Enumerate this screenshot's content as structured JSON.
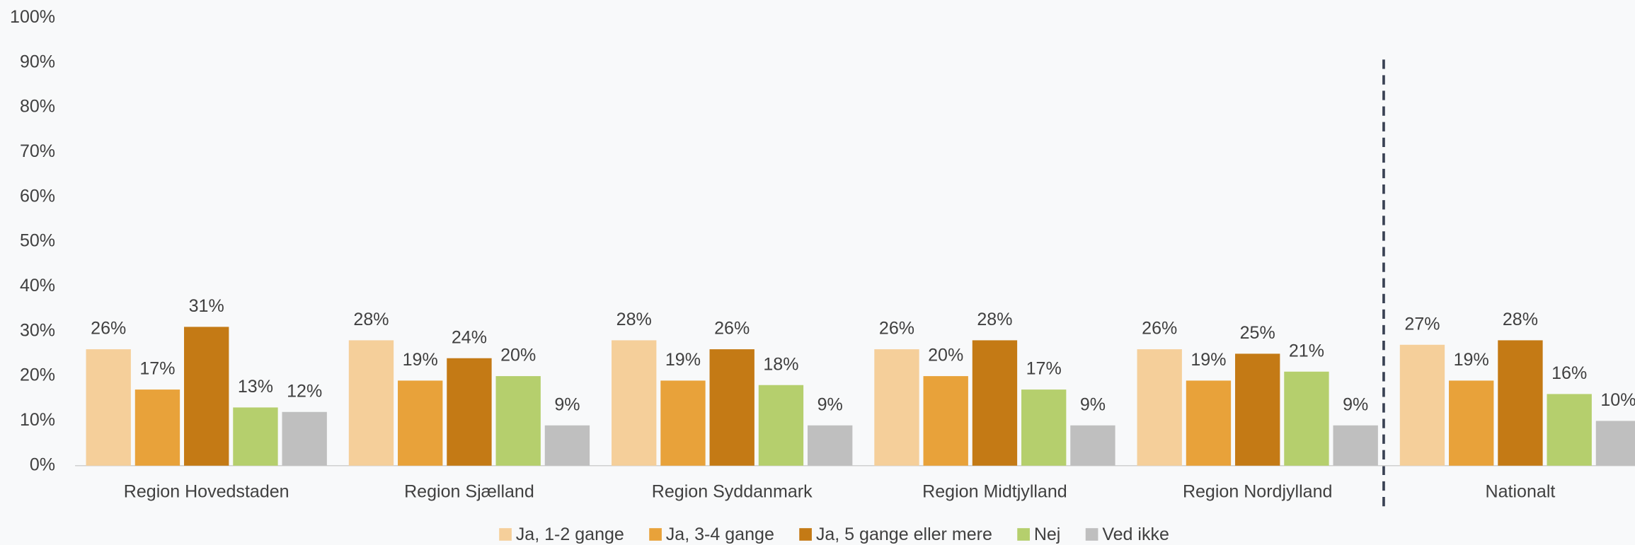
{
  "chart_data": {
    "type": "bar",
    "categories": [
      "Region Hovedstaden",
      "Region Sjælland",
      "Region Syddanmark",
      "Region Midtjylland",
      "Region Nordjylland",
      "Nationalt"
    ],
    "series": [
      {
        "name": "Ja, 1-2 gange",
        "color": "#f5cf9a",
        "values": [
          26,
          28,
          28,
          26,
          26,
          27
        ],
        "value_labels": [
          "26%",
          "28%",
          "28%",
          "26%",
          "26%",
          "27%"
        ]
      },
      {
        "name": "Ja, 3-4 gange",
        "color": "#e8a23a",
        "values": [
          17,
          19,
          19,
          20,
          19,
          19
        ],
        "value_labels": [
          "17%",
          "19%",
          "19%",
          "20%",
          "19%",
          "19%"
        ]
      },
      {
        "name": "Ja, 5 gange eller mere",
        "color": "#c47a15",
        "values": [
          31,
          24,
          26,
          28,
          25,
          28
        ],
        "value_labels": [
          "31%",
          "24%",
          "26%",
          "28%",
          "25%",
          "28%"
        ]
      },
      {
        "name": "Nej",
        "color": "#b5cf6d",
        "values": [
          13,
          20,
          18,
          17,
          21,
          16
        ],
        "value_labels": [
          "13%",
          "20%",
          "18%",
          "17%",
          "21%",
          "16%"
        ]
      },
      {
        "name": "Ved ikke",
        "color": "#bfbfbf",
        "values": [
          12,
          9,
          9,
          9,
          9,
          10
        ],
        "value_labels": [
          "12%",
          "9%",
          "9%",
          "9%",
          "9%",
          "10%"
        ]
      }
    ],
    "ylim": [
      0,
      100
    ],
    "yticks": [
      {
        "value": 0,
        "label": "0%"
      },
      {
        "value": 10,
        "label": "10%"
      },
      {
        "value": 20,
        "label": "20%"
      },
      {
        "value": 30,
        "label": "30%"
      },
      {
        "value": 40,
        "label": "40%"
      },
      {
        "value": 50,
        "label": "50%"
      },
      {
        "value": 60,
        "label": "60%"
      },
      {
        "value": 70,
        "label": "70%"
      },
      {
        "value": 80,
        "label": "80%"
      },
      {
        "value": 90,
        "label": "90%"
      },
      {
        "value": 100,
        "label": "100%"
      }
    ],
    "legend": "bottom"
  }
}
